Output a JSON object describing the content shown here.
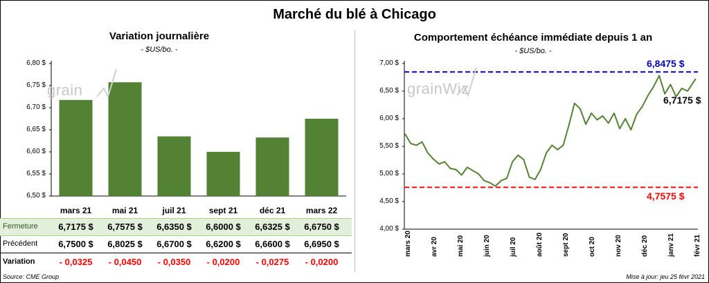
{
  "title": "Marché du blé à Chicago",
  "left": {
    "subtitle": "Variation journalière",
    "unit": "- $US/bo. -",
    "watermark": "grain",
    "rows": {
      "close_label": "Fermeture",
      "close": [
        "6,7175  $",
        "6,7575  $",
        "6,6350  $",
        "6,6000  $",
        "6,6325  $",
        "6,6750  $"
      ],
      "prev_label": "Précédent",
      "prev": [
        "6,7500  $",
        "6,8025  $",
        "6,6700  $",
        "6,6200  $",
        "6,6600  $",
        "6,6950  $"
      ],
      "var_label": "Variation",
      "var": [
        "- 0,0325",
        "- 0,0450",
        "- 0,0350",
        "- 0,0200",
        "- 0,0275",
        "- 0,0200"
      ]
    }
  },
  "right": {
    "subtitle": "Comportement  échéance immédiate depuis 1 an",
    "unit": "- $US/bo. -",
    "watermark": "grainWiz",
    "high_label": "6,8475 $",
    "low_label": "4,7575 $",
    "last_label": "6,7175 $"
  },
  "footer": {
    "source": "Source: CME Group",
    "updated": "Mise à jour: jeu 25 févr 2021"
  },
  "chart_data": [
    {
      "type": "bar",
      "title": "Variation journalière",
      "ylabel": "- $US/bo. -",
      "categories": [
        "mars 21",
        "mai 21",
        "juil 21",
        "sept 21",
        "déc 21",
        "mars 22"
      ],
      "values": [
        6.7175,
        6.7575,
        6.635,
        6.6,
        6.6325,
        6.675
      ],
      "ylim": [
        6.5,
        6.8
      ],
      "yticks": [
        "6,50 $",
        "6,55 $",
        "6,60 $",
        "6,65 $",
        "6,70 $",
        "6,75 $",
        "6,80 $"
      ],
      "color": "#548235",
      "grid": false
    },
    {
      "type": "line",
      "title": "Comportement  échéance immédiate depuis 1 an",
      "ylabel": "- $US/bo. -",
      "ylim": [
        4.0,
        7.0
      ],
      "yticks": [
        "4,00 $",
        "4,50 $",
        "5,00 $",
        "5,50 $",
        "6,00 $",
        "6,50 $",
        "7,00 $"
      ],
      "xticks": [
        "mars 20",
        "avr 20",
        "mai 20",
        "juin 20",
        "juil 20",
        "août 20",
        "sept 20",
        "oct 20",
        "nov 20",
        "déc 20",
        "janv 21",
        "févr 21"
      ],
      "color": "#548235",
      "high": 6.8475,
      "high_color": "#0000c0",
      "low": 4.7575,
      "low_color": "#ff0000",
      "last": 6.7175,
      "grid": false,
      "x": [
        "2020-03-02",
        "2020-03-09",
        "2020-03-16",
        "2020-03-23",
        "2020-03-30",
        "2020-04-06",
        "2020-04-13",
        "2020-04-20",
        "2020-04-27",
        "2020-05-04",
        "2020-05-11",
        "2020-05-18",
        "2020-05-25",
        "2020-06-01",
        "2020-06-08",
        "2020-06-15",
        "2020-06-22",
        "2020-06-29",
        "2020-07-06",
        "2020-07-13",
        "2020-07-20",
        "2020-07-27",
        "2020-08-03",
        "2020-08-10",
        "2020-08-17",
        "2020-08-24",
        "2020-08-31",
        "2020-09-07",
        "2020-09-14",
        "2020-09-21",
        "2020-09-28",
        "2020-10-05",
        "2020-10-12",
        "2020-10-19",
        "2020-10-26",
        "2020-11-02",
        "2020-11-09",
        "2020-11-16",
        "2020-11-23",
        "2020-11-30",
        "2020-12-07",
        "2020-12-14",
        "2020-12-21",
        "2020-12-28",
        "2021-01-04",
        "2021-01-11",
        "2021-01-18",
        "2021-01-25",
        "2021-02-01",
        "2021-02-08",
        "2021-02-15",
        "2021-02-25"
      ],
      "y": [
        5.72,
        5.55,
        5.52,
        5.58,
        5.38,
        5.27,
        5.18,
        5.22,
        5.1,
        5.08,
        4.98,
        5.12,
        5.06,
        5.0,
        4.88,
        4.84,
        4.78,
        4.88,
        4.92,
        5.22,
        5.34,
        5.26,
        4.94,
        4.9,
        5.08,
        5.38,
        5.52,
        5.44,
        5.52,
        5.88,
        6.28,
        6.18,
        5.9,
        6.1,
        5.98,
        6.05,
        5.92,
        6.1,
        5.82,
        6.0,
        5.8,
        6.08,
        6.22,
        6.42,
        6.58,
        6.78,
        6.45,
        6.62,
        6.4,
        6.55,
        6.5,
        6.7175
      ]
    }
  ]
}
